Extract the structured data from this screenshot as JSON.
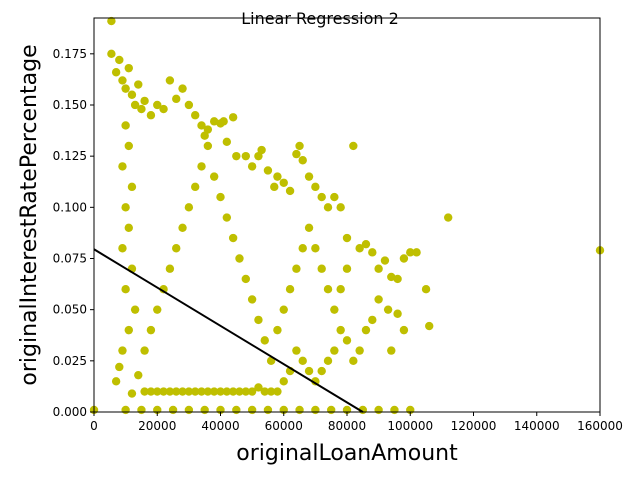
{
  "chart_data": {
    "type": "scatter",
    "title": "Linear Regression 2",
    "xlabel": "originalLoanAmount",
    "ylabel": "originalInterestRatePercentage",
    "xlim": [
      0,
      160000
    ],
    "ylim": [
      0,
      0.1925
    ],
    "x_ticks": [
      0,
      20000,
      40000,
      60000,
      80000,
      100000,
      120000,
      140000,
      160000
    ],
    "x_tick_labels": [
      "0",
      "20000",
      "40000",
      "60000",
      "80000",
      "100000",
      "120000",
      "140000",
      "160000"
    ],
    "y_ticks": [
      0.0,
      0.025,
      0.05,
      0.075,
      0.1,
      0.125,
      0.15,
      0.175
    ],
    "y_tick_labels": [
      "0.000",
      "0.025",
      "0.050",
      "0.075",
      "0.100",
      "0.125",
      "0.150",
      "0.175"
    ],
    "grid": false,
    "colors": {
      "points": "#bfbf00",
      "regression_line": "#000000"
    },
    "series": [
      {
        "kind": "scatter",
        "points": [
          [
            5500,
            0.191
          ],
          [
            5500,
            0.175
          ],
          [
            7000,
            0.166
          ],
          [
            8000,
            0.172
          ],
          [
            9000,
            0.162
          ],
          [
            10000,
            0.158
          ],
          [
            11000,
            0.168
          ],
          [
            12000,
            0.155
          ],
          [
            13000,
            0.15
          ],
          [
            14000,
            0.16
          ],
          [
            15000,
            0.148
          ],
          [
            16000,
            0.152
          ],
          [
            18000,
            0.145
          ],
          [
            20000,
            0.15
          ],
          [
            22000,
            0.148
          ],
          [
            24000,
            0.162
          ],
          [
            26000,
            0.153
          ],
          [
            28000,
            0.158
          ],
          [
            30000,
            0.15
          ],
          [
            32000,
            0.145
          ],
          [
            34000,
            0.14
          ],
          [
            36000,
            0.138
          ],
          [
            38000,
            0.142
          ],
          [
            40000,
            0.141
          ],
          [
            41000,
            0.142
          ],
          [
            44000,
            0.144
          ],
          [
            35000,
            0.135
          ],
          [
            42000,
            0.132
          ],
          [
            45000,
            0.125
          ],
          [
            48000,
            0.125
          ],
          [
            50000,
            0.12
          ],
          [
            52000,
            0.125
          ],
          [
            53000,
            0.128
          ],
          [
            55000,
            0.118
          ],
          [
            57000,
            0.11
          ],
          [
            58000,
            0.115
          ],
          [
            60000,
            0.112
          ],
          [
            62000,
            0.108
          ],
          [
            64000,
            0.126
          ],
          [
            65000,
            0.13
          ],
          [
            66000,
            0.123
          ],
          [
            68000,
            0.115
          ],
          [
            70000,
            0.11
          ],
          [
            72000,
            0.105
          ],
          [
            74000,
            0.1
          ],
          [
            76000,
            0.105
          ],
          [
            78000,
            0.1
          ],
          [
            80000,
            0.085
          ],
          [
            82000,
            0.13
          ],
          [
            84000,
            0.08
          ],
          [
            86000,
            0.082
          ],
          [
            88000,
            0.078
          ],
          [
            90000,
            0.07
          ],
          [
            92000,
            0.074
          ],
          [
            94000,
            0.066
          ],
          [
            96000,
            0.065
          ],
          [
            98000,
            0.075
          ],
          [
            100000,
            0.078
          ],
          [
            102000,
            0.078
          ],
          [
            105000,
            0.06
          ],
          [
            106000,
            0.042
          ],
          [
            112000,
            0.095
          ],
          [
            160000,
            0.079
          ],
          [
            96000,
            0.048
          ],
          [
            98000,
            0.04
          ],
          [
            94000,
            0.03
          ],
          [
            93000,
            0.05
          ],
          [
            90000,
            0.055
          ],
          [
            88000,
            0.045
          ],
          [
            86000,
            0.04
          ],
          [
            84000,
            0.03
          ],
          [
            82000,
            0.025
          ],
          [
            80000,
            0.035
          ],
          [
            78000,
            0.04
          ],
          [
            76000,
            0.03
          ],
          [
            74000,
            0.025
          ],
          [
            72000,
            0.02
          ],
          [
            70000,
            0.015
          ],
          [
            68000,
            0.02
          ],
          [
            66000,
            0.025
          ],
          [
            64000,
            0.03
          ],
          [
            62000,
            0.02
          ],
          [
            60000,
            0.015
          ],
          [
            58000,
            0.01
          ],
          [
            56000,
            0.01
          ],
          [
            54000,
            0.01
          ],
          [
            52000,
            0.012
          ],
          [
            50000,
            0.01
          ],
          [
            48000,
            0.01
          ],
          [
            46000,
            0.01
          ],
          [
            44000,
            0.01
          ],
          [
            42000,
            0.01
          ],
          [
            40000,
            0.01
          ],
          [
            38000,
            0.01
          ],
          [
            36000,
            0.01
          ],
          [
            34000,
            0.01
          ],
          [
            32000,
            0.01
          ],
          [
            30000,
            0.01
          ],
          [
            28000,
            0.01
          ],
          [
            26000,
            0.01
          ],
          [
            24000,
            0.01
          ],
          [
            22000,
            0.01
          ],
          [
            20000,
            0.01
          ],
          [
            18000,
            0.01
          ],
          [
            16000,
            0.01
          ],
          [
            15000,
            0.001
          ],
          [
            20000,
            0.001
          ],
          [
            25000,
            0.001
          ],
          [
            30000,
            0.001
          ],
          [
            35000,
            0.001
          ],
          [
            40000,
            0.001
          ],
          [
            45000,
            0.001
          ],
          [
            50000,
            0.001
          ],
          [
            55000,
            0.001
          ],
          [
            60000,
            0.001
          ],
          [
            65000,
            0.001
          ],
          [
            70000,
            0.001
          ],
          [
            75000,
            0.001
          ],
          [
            80000,
            0.001
          ],
          [
            85000,
            0.001
          ],
          [
            90000,
            0.001
          ],
          [
            95000,
            0.001
          ],
          [
            100000,
            0.001
          ],
          [
            0,
            0.001
          ],
          [
            10000,
            0.001
          ],
          [
            7000,
            0.015
          ],
          [
            12000,
            0.009
          ],
          [
            8000,
            0.022
          ],
          [
            14000,
            0.018
          ],
          [
            9000,
            0.03
          ],
          [
            11000,
            0.04
          ],
          [
            13000,
            0.05
          ],
          [
            10000,
            0.06
          ],
          [
            12000,
            0.07
          ],
          [
            9000,
            0.08
          ],
          [
            11000,
            0.09
          ],
          [
            10000,
            0.1
          ],
          [
            12000,
            0.11
          ],
          [
            9000,
            0.12
          ],
          [
            11000,
            0.13
          ],
          [
            10000,
            0.14
          ],
          [
            16000,
            0.03
          ],
          [
            18000,
            0.04
          ],
          [
            20000,
            0.05
          ],
          [
            22000,
            0.06
          ],
          [
            24000,
            0.07
          ],
          [
            26000,
            0.08
          ],
          [
            28000,
            0.09
          ],
          [
            30000,
            0.1
          ],
          [
            32000,
            0.11
          ],
          [
            34000,
            0.12
          ],
          [
            36000,
            0.13
          ],
          [
            38000,
            0.115
          ],
          [
            40000,
            0.105
          ],
          [
            42000,
            0.095
          ],
          [
            44000,
            0.085
          ],
          [
            46000,
            0.075
          ],
          [
            48000,
            0.065
          ],
          [
            50000,
            0.055
          ],
          [
            52000,
            0.045
          ],
          [
            54000,
            0.035
          ],
          [
            56000,
            0.025
          ],
          [
            58000,
            0.04
          ],
          [
            60000,
            0.05
          ],
          [
            62000,
            0.06
          ],
          [
            64000,
            0.07
          ],
          [
            66000,
            0.08
          ],
          [
            68000,
            0.09
          ],
          [
            70000,
            0.08
          ],
          [
            72000,
            0.07
          ],
          [
            74000,
            0.06
          ],
          [
            76000,
            0.05
          ],
          [
            78000,
            0.06
          ],
          [
            80000,
            0.07
          ]
        ]
      },
      {
        "kind": "regression_line",
        "points": [
          [
            0,
            0.0795
          ],
          [
            85000,
            0.0
          ]
        ]
      }
    ]
  }
}
